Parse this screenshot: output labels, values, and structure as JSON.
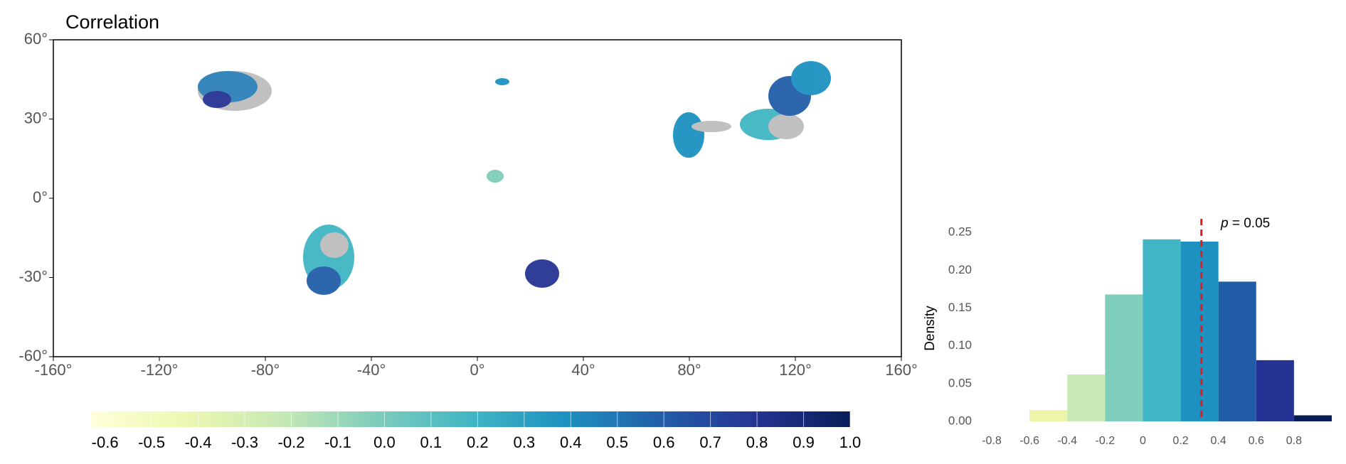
{
  "chart_data": [
    {
      "type": "map",
      "title": "Correlation",
      "xlim": [
        -160,
        160
      ],
      "ylim": [
        -60,
        60
      ],
      "xticks": [
        {
          "value": -160,
          "label": "-160°"
        },
        {
          "value": -120,
          "label": "-120°"
        },
        {
          "value": -80,
          "label": "-80°"
        },
        {
          "value": -40,
          "label": "-40°"
        },
        {
          "value": 0,
          "label": "0°"
        },
        {
          "value": 40,
          "label": "40°"
        },
        {
          "value": 80,
          "label": "80°"
        },
        {
          "value": 120,
          "label": "120°"
        },
        {
          "value": 160,
          "label": "160°"
        }
      ],
      "yticks": [
        {
          "value": -60,
          "label": "-60°"
        },
        {
          "value": -30,
          "label": "-30°"
        },
        {
          "value": 0,
          "label": "0°"
        },
        {
          "value": 30,
          "label": "30°"
        },
        {
          "value": 60,
          "label": "60°"
        }
      ],
      "colorbar": {
        "lim": [
          -0.63,
          1.0
        ],
        "ticks": [
          -0.6,
          -0.5,
          -0.4,
          -0.3,
          -0.2,
          -0.1,
          {
            "value": 0,
            "label": "0.0"
          },
          0.1,
          0.2,
          0.3,
          0.4,
          0.5,
          0.6,
          0.7,
          0.8,
          0.9,
          {
            "value": 1,
            "label": "1.0"
          }
        ],
        "colors": [
          "#ffffd9",
          "#edf8b1",
          "#c7e9b4",
          "#7fcdbb",
          "#41b6c4",
          "#1d91c0",
          "#225ea8",
          "#253494",
          "#081d58"
        ]
      }
    },
    {
      "type": "histogram",
      "ylabel": "Density",
      "bins": [
        -0.6,
        -0.4,
        -0.2,
        0,
        0.2,
        0.4,
        0.6,
        0.8,
        1.0
      ],
      "values": [
        0.015,
        0.062,
        0.168,
        0.241,
        0.238,
        0.185,
        0.081,
        0.008
      ],
      "colors": [
        "#edf5a8",
        "#c7e9b4",
        "#7fcdbb",
        "#41b6c4",
        "#1d91c0",
        "#225ea8",
        "#253494",
        "#081d58"
      ],
      "xlim": [
        -0.8,
        1.0
      ],
      "ylim": [
        0,
        0.27
      ],
      "xticks": [
        -0.8,
        -0.6,
        -0.4,
        -0.2,
        0,
        0.2,
        0.4,
        0.6,
        0.8
      ],
      "yticks": [
        {
          "value": 0,
          "label": "0.00"
        },
        0.05,
        {
          "value": 0.1,
          "label": "0.10"
        },
        0.15,
        {
          "value": 0.2,
          "label": "0.20"
        },
        0.25
      ],
      "threshold": {
        "value": 0.31,
        "color": "#e41a1c"
      },
      "annotation": {
        "italic": "p",
        "text": "= 0.05"
      }
    }
  ]
}
